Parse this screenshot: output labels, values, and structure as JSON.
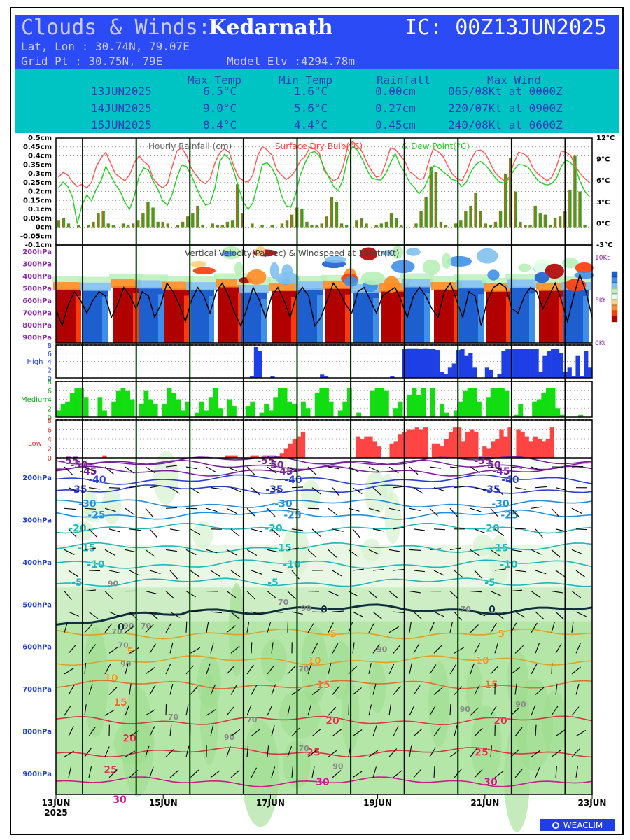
{
  "header": {
    "title": "Clouds & Winds:",
    "location": "Kedarnath",
    "ic": "IC: 00Z13JUN2025",
    "latlon": "Lat, Lon : 30.74N, 79.07E",
    "gridpt": "Grid Pt  : 30.75N, 79E",
    "model_elv": "Model Elv :4294.78m"
  },
  "summary": {
    "columns": [
      "Max Temp",
      "Min Temp",
      "Rainfall",
      "Max Wind"
    ],
    "rows": [
      {
        "date": "13JUN2025",
        "max_temp": "6.5°C",
        "min_temp": "1.6°C",
        "rainfall": "0.00cm",
        "max_wind": "065/08Kt at 0000Z"
      },
      {
        "date": "14JUN2025",
        "max_temp": "9.0°C",
        "min_temp": "5.6°C",
        "rainfall": "0.27cm",
        "max_wind": "220/07Kt at 0900Z"
      },
      {
        "date": "15JUN2025",
        "max_temp": "8.4°C",
        "min_temp": "4.4°C",
        "rainfall": "0.45cm",
        "max_wind": "240/08Kt at 0600Z"
      }
    ]
  },
  "logo_text": "WEACLIM",
  "colors": {
    "header_blue": "#2a4bf5",
    "header_cyan": "#00c4c4",
    "rain": "#8b7a1e",
    "temp": "#ff5555",
    "dew": "#22cc22",
    "high": "#1f3fe6",
    "medium": "#11dd11",
    "low": "#ff4444",
    "vline_day": "#000000",
    "vline_noon": "#22cc22",
    "vv_up": "#b00000",
    "vv_down": "#1e5fd0"
  },
  "chart_data": [
    {
      "type": "bar",
      "title": "Hourly Rainfall (cm)   Surface Dry Bulb(°C)   & Dew Point(°C)",
      "title_parts": [
        "Hourly Rainfall (cm)",
        "Surface Dry Bulb(°C)",
        "& Dew Point(°C)"
      ],
      "y_ticks_left": [
        "0.5cm",
        "0.45cm",
        "0.4cm",
        "0.35cm",
        "0.3cm",
        "0.25cm",
        "0.2cm",
        "0.15cm",
        "0.1cm",
        "0.05cm",
        "0cm",
        "-0.05cm",
        "-0.1cm"
      ],
      "y_ticks_right": [
        "12°C",
        "9°C",
        "6°C",
        "3°C",
        "0°C",
        "-3°C"
      ],
      "ylim_left": [
        -0.1,
        0.5
      ],
      "ylim_right": [
        -3,
        12
      ],
      "rainfall_cm": [
        0.04,
        0.05,
        0.02,
        0,
        0.01,
        0,
        0.01,
        0.03,
        0.08,
        0.09,
        0.02,
        0.01,
        0,
        0.02,
        0.01,
        0.02,
        0.04,
        0.08,
        0.14,
        0.11,
        0.03,
        0.03,
        0.02,
        0,
        0.01,
        0.03,
        0.06,
        0.08,
        0.12,
        0.01,
        0,
        0.02,
        0.01,
        0.01,
        0.03,
        0.04,
        0.24,
        0.08,
        0,
        0.02,
        0,
        0.01,
        0,
        0.01,
        0,
        0.02,
        0.04,
        0.07,
        0.11,
        0.1,
        0.03,
        0.01,
        0.01,
        0.02,
        0.06,
        0.17,
        0.14,
        0.02,
        0.01,
        0,
        0.04,
        0.05,
        0.02,
        0,
        0.01,
        0.02,
        0.03,
        0.08,
        0.05,
        0.01,
        0,
        0,
        0.02,
        0.09,
        0.17,
        0.34,
        0.31,
        0.03,
        0.01,
        0,
        0.02,
        0.04,
        0.09,
        0.12,
        0.19,
        0.09,
        0.02,
        0.01,
        0.03,
        0.09,
        0.3,
        0.39,
        0.2,
        0.03,
        0.01,
        0.01,
        0.12,
        0.08,
        0.07,
        0.01,
        0.05,
        0.06,
        0.09,
        0.21,
        0.4,
        0.2,
        0.01,
        0
      ],
      "dry_bulb_c": [
        6.5,
        7.2,
        6.8,
        5.8,
        5.2,
        5.5,
        5.0,
        5.8,
        8.0,
        9.2,
        10.0,
        8.5,
        7.0,
        6.5,
        6.0,
        6.8,
        8.5,
        9.5,
        8.7,
        8.2,
        6.3,
        5.5,
        5.0,
        5.6,
        8.0,
        10.2,
        10.6,
        9.6,
        7.8,
        6.8,
        6.0,
        5.6,
        6.3,
        8.5,
        9.9,
        10.5,
        10.0,
        8.0,
        6.5,
        6.0,
        5.8,
        6.8,
        9.5,
        10.8,
        10.3,
        9.6,
        7.6,
        6.8,
        6.2,
        6.6,
        7.5,
        8.8,
        9.4,
        10.7,
        10.5,
        9.9,
        7.5,
        6.6,
        6.0,
        6.4,
        8.0,
        10.8,
        11.5,
        10.9,
        10.1,
        8.6,
        7.4,
        6.5,
        6.7,
        8.5,
        10.6,
        10.4,
        9.6,
        8.8,
        7.3,
        6.8,
        6.2,
        6.3,
        8.5,
        10.5,
        10.1,
        9.5,
        8.2,
        7.0,
        6.3,
        6.0,
        7.2,
        9.0,
        10.2,
        10.3,
        9.8,
        8.5,
        7.2,
        6.5,
        6.0,
        6.5,
        8.5,
        10.0,
        9.8,
        9.3,
        7.8,
        7.0,
        6.5,
        6.0,
        6.5,
        8.0,
        10.2,
        10.0,
        9.5,
        8.0,
        7.0,
        6.3,
        5.7
      ],
      "dew_point_c": [
        5.0,
        5.8,
        5.2,
        3.7,
        0.0,
        2.6,
        4.0,
        3.2,
        4.8,
        6.0,
        8.0,
        6.8,
        5.5,
        4.6,
        3.0,
        2.0,
        3.8,
        6.6,
        7.8,
        7.5,
        5.9,
        4.8,
        3.2,
        2.6,
        4.1,
        6.5,
        8.2,
        8.0,
        6.8,
        5.2,
        3.7,
        2.6,
        2.8,
        5.0,
        8.7,
        9.7,
        9.1,
        7.3,
        5.0,
        3.0,
        2.0,
        2.9,
        5.5,
        8.3,
        8.5,
        7.8,
        6.5,
        4.0,
        2.5,
        2.3,
        4.1,
        6.8,
        8.5,
        9.9,
        10.1,
        9.5,
        7.8,
        6.5,
        5.2,
        4.6,
        6.2,
        9.3,
        10.8,
        10.3,
        9.1,
        7.6,
        6.4,
        6.2,
        6.1,
        7.0,
        8.5,
        9.8,
        8.2,
        7.2,
        5.8,
        5.1,
        4.2,
        4.9,
        6.3,
        8.1,
        7.9,
        7.3,
        6.8,
        6.2,
        6.0,
        5.2,
        5.8,
        7.3,
        8.3,
        8.7,
        8.2,
        7.4,
        6.5,
        5.8,
        5.7,
        6.3,
        7.5,
        8.3,
        8.2,
        7.9,
        7.0,
        6.1,
        5.6,
        5.4,
        5.6,
        6.4,
        8.0,
        8.9,
        8.5,
        7.8,
        5.8,
        4.5,
        3.7
      ],
      "grid": true
    },
    {
      "type": "heatmap",
      "title": "Vertical Velocity(Pa/Sec) & Windspeed at 10mtr(Kt)",
      "y_ticks": [
        "200hPa",
        "300hPa",
        "400hPa",
        "500hPa",
        "600hPa",
        "700hPa",
        "800hPa",
        "900hPa"
      ],
      "right_ticks": [
        "10Kt",
        "5Kt",
        "0Kt"
      ],
      "windspeed_kt": [
        4.0,
        2.0,
        4.5,
        6.0,
        5.0,
        3.5,
        5.0,
        6.0,
        5.5,
        3.0,
        4.5,
        6.5,
        5.5,
        4.0,
        6.0,
        5.5,
        3.0,
        4.5,
        7.0,
        6.0,
        4.5,
        2.5,
        5.0,
        6.5,
        5.5,
        3.5,
        6.0,
        7.0,
        5.5,
        3.5,
        2.0,
        4.0,
        6.5,
        5.0,
        3.0,
        5.5,
        6.5,
        5.0,
        3.0,
        5.5,
        6.5,
        5.5,
        2.0,
        3.0,
        5.0,
        7.0,
        6.0,
        4.5,
        3.5,
        6.0,
        6.5,
        5.0,
        3.5,
        5.5,
        6.0,
        6.5,
        5.0,
        3.0,
        5.5,
        6.5,
        5.5,
        4.0,
        3.0,
        6.0,
        7.0,
        5.0,
        3.0,
        6.0,
        5.5,
        2.0,
        5.0,
        6.5,
        7.0,
        6.5,
        4.0,
        3.5,
        5.5,
        6.5,
        6.0,
        4.0,
        5.5,
        7.0,
        5.0,
        2.5,
        5.5,
        8.0,
        6.0,
        3.0
      ],
      "color_scale": [
        "#1e5fd0",
        "#3f8fe8",
        "#7fc0f0",
        "#b8f0b8",
        "#e8ffe8",
        "#ffd080",
        "#ff8c20",
        "#ff3a0a",
        "#b00000"
      ]
    },
    {
      "type": "bar",
      "series_name": "High",
      "y_ticks": [
        "8",
        "6",
        "4",
        "2",
        "0"
      ],
      "ylim": [
        0,
        8
      ],
      "values": [
        0,
        0,
        0,
        0,
        0,
        0,
        0,
        0,
        0,
        0,
        0,
        0,
        0,
        0,
        0,
        0,
        0,
        0,
        0,
        0,
        0,
        0,
        0,
        0,
        0,
        0,
        0,
        0,
        0,
        0,
        0,
        0,
        0,
        0,
        0,
        0,
        0,
        0,
        0,
        0,
        0,
        0,
        0,
        0,
        0,
        0,
        0,
        0.5,
        7.5,
        6.5,
        0,
        0,
        0.5,
        0,
        0,
        0,
        0,
        0,
        0,
        0,
        0,
        0,
        0,
        0,
        0.8,
        0.5,
        0,
        0,
        0,
        0,
        0,
        0,
        0,
        0,
        0,
        0,
        0,
        0,
        0,
        0,
        0,
        0.5,
        0,
        0,
        7.0,
        7.2,
        7.2,
        7.2,
        7.0,
        7.2,
        7.0,
        7.0,
        6.8,
        1.5,
        1.0,
        2.5,
        3.5,
        6.8,
        7.0,
        5.5,
        6.0,
        2.5,
        0,
        0,
        2.5,
        2.0,
        0,
        1.0,
        6.5,
        7.0,
        7.0,
        7.0,
        7.0,
        7.0,
        7.0,
        7.0,
        7.0,
        1.5,
        5.5,
        6.5,
        7.0,
        7.0,
        6.0,
        1.5,
        2.5,
        0.5,
        5.5,
        0.5,
        6.5,
        2.5
      ],
      "ylabel": ""
    },
    {
      "type": "bar",
      "series_name": "Medium",
      "y_ticks": [
        "8",
        "6",
        "4",
        "2",
        "0"
      ],
      "ylim": [
        0,
        8
      ],
      "values": [
        1.5,
        3.0,
        3.5,
        5.5,
        6.5,
        6.5,
        4.5,
        0,
        0,
        4.5,
        1.5,
        0,
        3.5,
        6.0,
        6.5,
        6.0,
        4.0,
        0,
        3.0,
        6.0,
        4.0,
        3.0,
        0,
        3.0,
        6.5,
        5.5,
        4.0,
        1.5,
        3.5,
        0,
        1.0,
        3.5,
        1.5,
        4.5,
        6.5,
        2.0,
        0,
        4.0,
        2.5,
        0,
        0,
        2.5,
        3.5,
        0,
        1.0,
        3.0,
        1.5,
        4.5,
        6.5,
        6.5,
        3.5,
        3.0,
        0,
        3.5,
        2.0,
        0,
        5.5,
        6.5,
        6.5,
        3.5,
        0,
        1.5,
        3.5,
        6.5,
        0,
        1.0,
        0,
        0,
        6.0,
        6.5,
        6.5,
        6.0,
        0,
        2.0,
        3.5,
        0,
        5.0,
        6.5,
        5.0,
        6.5,
        0,
        6.5,
        0,
        3.0,
        1.0,
        0,
        1.5,
        3.5,
        6.0,
        6.5,
        6.5,
        3.5,
        0,
        4.5,
        6.5,
        6.5,
        6.5,
        6.0,
        0,
        0.5,
        3.0,
        0,
        0,
        3.5,
        4.0,
        5.5,
        6.5,
        6.5,
        2.0,
        0.5,
        0,
        0,
        0,
        0.5,
        0,
        0
      ],
      "ylabel": ""
    },
    {
      "type": "bar",
      "series_name": "Low",
      "y_ticks": [
        "8",
        "6",
        "4",
        "2",
        "0"
      ],
      "ylim": [
        0,
        8
      ],
      "values": [
        0,
        0,
        0,
        0,
        0,
        0,
        0,
        0,
        0,
        0,
        0,
        0.5,
        0,
        0,
        0,
        0,
        0,
        0,
        0,
        0,
        0,
        0,
        0,
        0,
        0,
        0,
        0,
        0,
        0,
        0,
        0,
        0,
        0,
        0,
        0,
        0,
        0,
        0,
        0,
        0,
        0.5,
        0.5,
        0.5,
        0,
        0,
        0,
        0.5,
        0.5,
        0,
        0.5,
        0.5,
        0.5,
        0,
        1.0,
        2.0,
        3.0,
        4.0,
        4.5,
        5.5,
        0,
        0,
        0,
        0,
        0,
        0,
        0,
        0,
        0,
        0,
        0,
        0,
        4.5,
        4.0,
        4.5,
        4.5,
        3.5,
        2.5,
        0,
        0,
        3.0,
        3.5,
        5.0,
        5.5,
        6.0,
        6.0,
        6.5,
        6.0,
        6.5,
        0,
        3.0,
        3.0,
        2.5,
        4.0,
        5.5,
        6.5,
        6.5,
        3.5,
        5.5,
        6.0,
        5.5,
        0,
        2.5,
        2.0,
        3.5,
        4.0,
        6.0,
        4.5,
        6.5,
        0,
        6.0,
        5.5,
        4.5,
        3.5,
        4.5,
        4.0,
        3.5,
        4.0,
        6.5,
        0,
        0,
        0,
        0,
        0,
        0,
        0,
        0,
        0
      ],
      "ylabel": ""
    },
    {
      "type": "heatmap",
      "title": "",
      "y_ticks": [
        "200hPa",
        "300hPa",
        "400hPa",
        "500hPa",
        "600hPa",
        "700hPa",
        "800hPa",
        "900hPa"
      ],
      "isotherms": [
        {
          "temp": -55,
          "level_hpa": 160
        },
        {
          "temp": -50,
          "level_hpa": 170
        },
        {
          "temp": -45,
          "level_hpa": 185
        },
        {
          "temp": -40,
          "level_hpa": 205
        },
        {
          "temp": -35,
          "level_hpa": 228
        },
        {
          "temp": -30,
          "level_hpa": 262
        },
        {
          "temp": -25,
          "level_hpa": 288
        },
        {
          "temp": -20,
          "level_hpa": 320
        },
        {
          "temp": -15,
          "level_hpa": 366
        },
        {
          "temp": -10,
          "level_hpa": 405
        },
        {
          "temp": -5,
          "level_hpa": 448
        },
        {
          "temp": 0,
          "level_hpa": 512
        },
        {
          "temp": 5,
          "level_hpa": 570
        },
        {
          "temp": 10,
          "level_hpa": 633
        },
        {
          "temp": 15,
          "level_hpa": 690
        },
        {
          "temp": 20,
          "level_hpa": 775
        },
        {
          "temp": 25,
          "level_hpa": 850
        },
        {
          "temp": 30,
          "level_hpa": 920
        }
      ],
      "isotherm_labels": [
        "-55",
        "-50",
        "-45",
        "-40",
        "-35",
        "-30",
        "-25",
        "-20",
        "-15",
        "-10",
        "-5",
        "0",
        "5",
        "10",
        "15",
        "20",
        "25",
        "30"
      ],
      "rh_labels": [
        "90",
        "70"
      ]
    }
  ],
  "x_axis": {
    "ticks": [
      "13JUN",
      "15JUN",
      "17JUN",
      "19JUN",
      "21JUN",
      "23JUN"
    ],
    "year_label": "2025"
  }
}
